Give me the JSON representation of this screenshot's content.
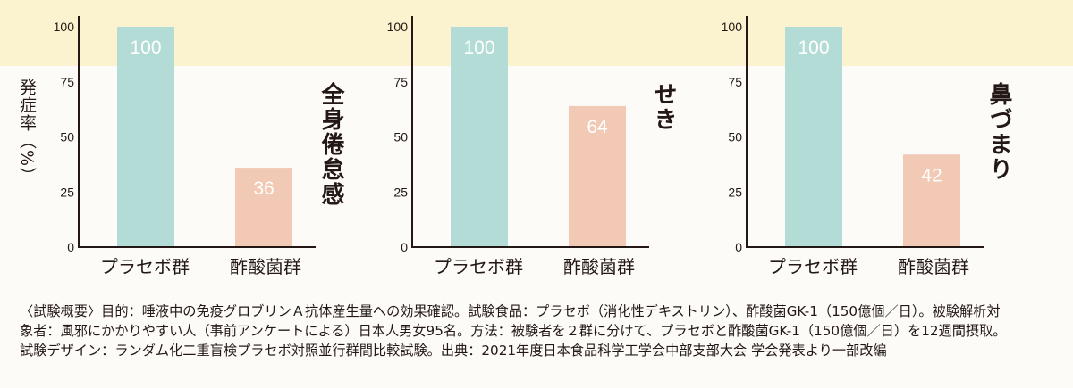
{
  "chart_data": {
    "type": "bar",
    "ylabel": "発症率（%）",
    "ylim": [
      0,
      100
    ],
    "yticks": [
      "100",
      "75",
      "50",
      "25",
      "0"
    ],
    "categories": [
      "プラセボ群",
      "酢酸菌群"
    ],
    "colors": {
      "placebo": "#b4dcd6",
      "acetic": "#f2c9b4",
      "highlight_band": "#fbf3cf"
    },
    "panels": [
      {
        "label": "全身倦怠感",
        "values": [
          100,
          36
        ]
      },
      {
        "label": "せき",
        "values": [
          100,
          64
        ]
      },
      {
        "label": "鼻づまり",
        "values": [
          100,
          42
        ]
      }
    ]
  },
  "footnote": [
    "〈試験概要〉目的：唾液中の免疫グロブリンＡ抗体産生量への効果確認。試験食品：プラセボ（消化性デキストリン）、酢酸菌GK-1（150億個／日）。被験解析対",
    "象者：風邪にかかりやすい人（事前アンケートによる）日本人男女95名。方法：被験者を２群に分けて、プラセボと酢酸菌GK-1（150億個／日）を12週間摂取。",
    "試験デザイン：ランダム化二重盲検プラセボ対照並行群間比較試験。出典：2021年度日本食品科学工学会中部支部大会 学会発表より一部改編"
  ]
}
